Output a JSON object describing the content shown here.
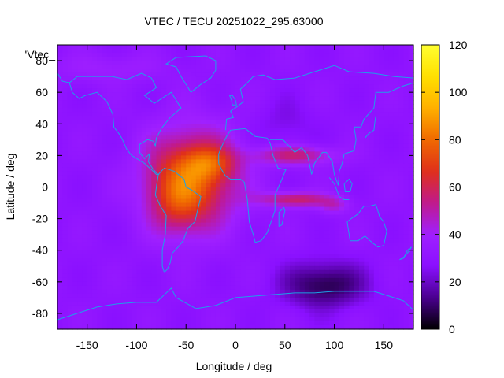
{
  "chart_data": {
    "type": "heatmap",
    "title": "VTEC / TECU 20251022_295.63000",
    "xlabel": "Longitude / deg",
    "ylabel": "Latitude / deg",
    "legend_entry": "'Vtec_",
    "xlim": [
      -180,
      180
    ],
    "ylim": [
      -90,
      90
    ],
    "xticks": [
      -150,
      -100,
      -50,
      0,
      50,
      100,
      150
    ],
    "yticks": [
      -80,
      -60,
      -40,
      -20,
      0,
      20,
      40,
      60,
      80
    ],
    "colorbar": {
      "range": [
        0,
        120
      ],
      "ticks": [
        0,
        20,
        40,
        60,
        80,
        100,
        120
      ]
    },
    "colormap": [
      "#000000",
      "#4a0090",
      "#8a10ff",
      "#a020ff",
      "#c01a8c",
      "#e0301a",
      "#f06a00",
      "#ffb000",
      "#ffe000",
      "#ffff30"
    ],
    "coastline_color": "#1ea0e8",
    "field_model": {
      "background": 30,
      "features": [
        {
          "lon": -45,
          "lat": 5,
          "slon": 45,
          "slat": 30,
          "amp": 46
        },
        {
          "lon": -60,
          "lat": -10,
          "slon": 25,
          "slat": 20,
          "amp": 15
        },
        {
          "lon": -25,
          "lat": 15,
          "slon": 25,
          "slat": 10,
          "amp": 20
        },
        {
          "lon": 60,
          "lat": 20,
          "slon": 40,
          "slat": 6,
          "amp": 26
        },
        {
          "lon": 60,
          "lat": -8,
          "slon": 35,
          "slat": 5,
          "amp": 28
        },
        {
          "lon": 100,
          "lat": -12,
          "slon": 15,
          "slat": 5,
          "amp": 14
        },
        {
          "lon": 90,
          "lat": -62,
          "slon": 40,
          "slat": 14,
          "amp": -24
        },
        {
          "lon": -130,
          "lat": 75,
          "slon": 60,
          "slat": 10,
          "amp": 8
        },
        {
          "lon": 50,
          "lat": 40,
          "slon": 30,
          "slat": 15,
          "amp": -6
        }
      ]
    }
  }
}
